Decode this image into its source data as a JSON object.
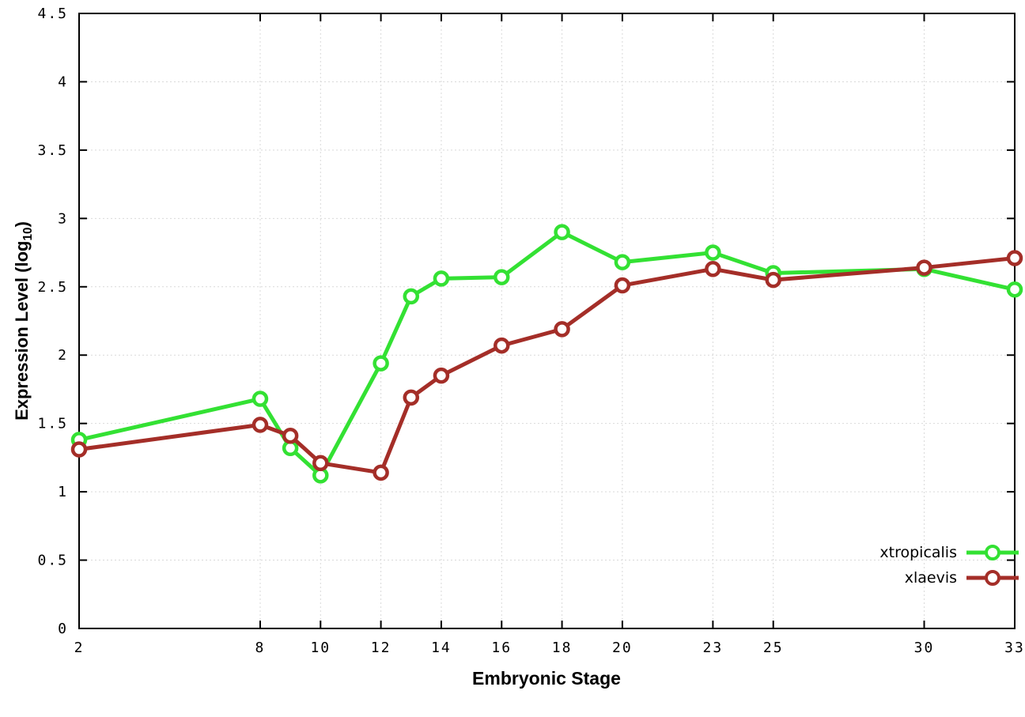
{
  "chart_data": {
    "type": "line",
    "title": "",
    "xlabel": "Embryonic Stage",
    "ylabel": "Expression Level (log10)",
    "ylabel_parts": {
      "pre": "Expression Level (log",
      "sub": "10",
      "post": ")"
    },
    "x": [
      2,
      8,
      9,
      10,
      12,
      13,
      14,
      16,
      18,
      20,
      23,
      25,
      30,
      33
    ],
    "xticks": [
      2,
      8,
      10,
      12,
      14,
      16,
      18,
      20,
      23,
      25,
      30,
      33
    ],
    "xlim": [
      2,
      33
    ],
    "ylim": [
      0,
      4.5
    ],
    "ytick_step": 0.5,
    "grid": true,
    "legend_position": "bottom-right",
    "background": "#ffffff",
    "series": [
      {
        "name": "xtropicalis",
        "color": "#33e133",
        "marker": "open-circle",
        "values": [
          1.38,
          1.68,
          1.32,
          1.12,
          1.94,
          2.43,
          2.56,
          2.57,
          2.9,
          2.68,
          2.75,
          2.6,
          2.63,
          2.48
        ]
      },
      {
        "name": "xlaevis",
        "color": "#a42e28",
        "marker": "open-circle",
        "values": [
          1.31,
          1.49,
          1.41,
          1.21,
          1.14,
          1.69,
          1.85,
          2.07,
          2.19,
          2.51,
          2.63,
          2.55,
          2.64,
          2.71
        ]
      }
    ]
  }
}
